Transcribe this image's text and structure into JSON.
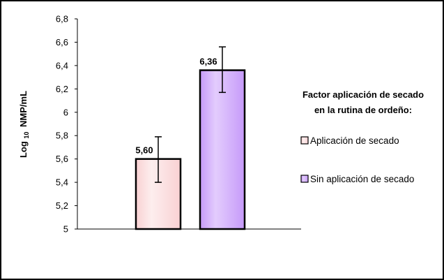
{
  "chart_data": {
    "type": "bar",
    "categories": [
      "Aplicación de secado",
      "Sin aplicación de secado"
    ],
    "values": [
      5.6,
      6.36
    ],
    "value_labels": [
      "5,60",
      "6,36"
    ],
    "error_bars": [
      {
        "low": 5.4,
        "high": 5.79
      },
      {
        "low": 6.17,
        "high": 6.56
      }
    ],
    "ylabel_main": "Log",
    "ylabel_sub": "10",
    "ylabel_rest": "NMP/mL",
    "ylim": [
      5,
      6.8
    ],
    "yticks": [
      {
        "value": 5.0,
        "label": "5"
      },
      {
        "value": 5.2,
        "label": "5,2"
      },
      {
        "value": 5.4,
        "label": "5,4"
      },
      {
        "value": 5.6,
        "label": "5,6"
      },
      {
        "value": 5.8,
        "label": "5,8"
      },
      {
        "value": 6.0,
        "label": "6"
      },
      {
        "value": 6.2,
        "label": "6,2"
      },
      {
        "value": 6.4,
        "label": "6,4"
      },
      {
        "value": 6.6,
        "label": "6,6"
      },
      {
        "value": 6.8,
        "label": "6,8"
      }
    ],
    "grid": false,
    "legend": {
      "title_lines": [
        "Factor aplicación  de secado",
        "en la rutina de ordeño:"
      ],
      "position": "right",
      "entries": [
        "Aplicación de secado",
        "Sin aplicación de secado"
      ]
    },
    "colors": {
      "bar_1": "#f9d1d3",
      "bar_1_highlight": "#fdeeee",
      "bar_2": "#c69af9",
      "bar_2_highlight": "#e3ccfd",
      "bar_border": "#000000"
    }
  }
}
